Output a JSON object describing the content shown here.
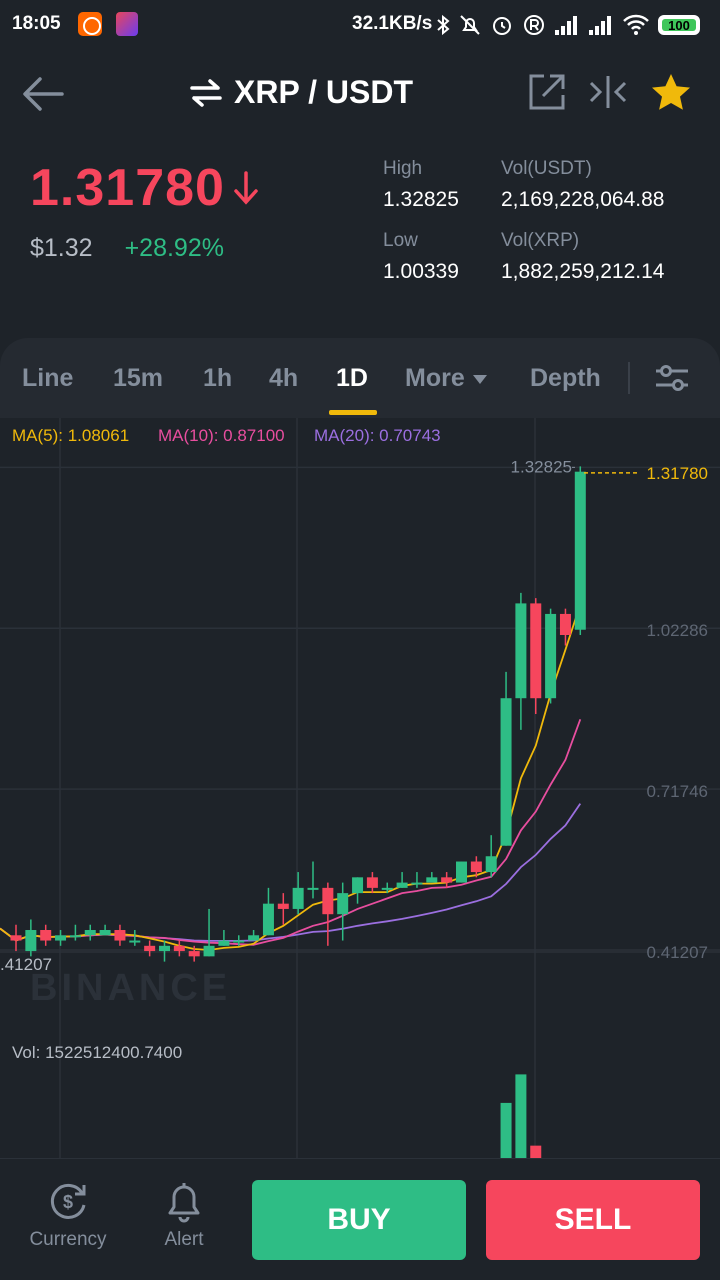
{
  "status": {
    "time": "18:05",
    "speed": "32.1KB/s",
    "battery": "100"
  },
  "header": {
    "pair": "XRP / USDT"
  },
  "ticker": {
    "price": "1.31780",
    "usd": "$1.32",
    "change": "+28.92%",
    "high_label": "High",
    "high": "1.32825",
    "low_label": "Low",
    "low": "1.00339",
    "vol_usdt_label": "Vol(USDT)",
    "vol_usdt": "2,169,228,064.88",
    "vol_xrp_label": "Vol(XRP)",
    "vol_xrp": "1,882,259,212.14"
  },
  "tabs": {
    "line": "Line",
    "m15": "15m",
    "h1": "1h",
    "h4": "4h",
    "d1": "1D",
    "more": "More",
    "depth": "Depth",
    "active": "1D"
  },
  "ma": {
    "ma5": "MA(5): 1.08061",
    "ma10": "MA(10): 0.87100",
    "ma20": "MA(20): 0.70743",
    "ma5_color": "#f0b90b",
    "ma10_color": "#e84e9f",
    "ma20_color": "#9b6fe0"
  },
  "colors": {
    "up": "#2ebd85",
    "down": "#f6465d",
    "accent": "#f0b90b"
  },
  "chart_data": {
    "type": "candlestick",
    "y_axis_labels": [
      "1.32825",
      "1.02286",
      "0.71746",
      "0.41207"
    ],
    "high_label": "1.32825",
    "last_price_label": "1.31780",
    "low_label": ".41207",
    "watermark": "BINANCE",
    "volume_label": "Vol: 1522512400.7400",
    "ylim": [
      0.245,
      1.346
    ],
    "candles": [
      {
        "o": 0.44,
        "c": 0.43,
        "h": 0.46,
        "l": 0.41
      },
      {
        "o": 0.41,
        "c": 0.45,
        "h": 0.47,
        "l": 0.4
      },
      {
        "o": 0.45,
        "c": 0.43,
        "h": 0.46,
        "l": 0.42
      },
      {
        "o": 0.43,
        "c": 0.44,
        "h": 0.45,
        "l": 0.42
      },
      {
        "o": 0.44,
        "c": 0.44,
        "h": 0.46,
        "l": 0.43
      },
      {
        "o": 0.44,
        "c": 0.45,
        "h": 0.46,
        "l": 0.43
      },
      {
        "o": 0.44,
        "c": 0.45,
        "h": 0.46,
        "l": 0.44
      },
      {
        "o": 0.45,
        "c": 0.43,
        "h": 0.46,
        "l": 0.42
      },
      {
        "o": 0.43,
        "c": 0.43,
        "h": 0.45,
        "l": 0.42
      },
      {
        "o": 0.42,
        "c": 0.41,
        "h": 0.43,
        "l": 0.4
      },
      {
        "o": 0.41,
        "c": 0.42,
        "h": 0.43,
        "l": 0.39
      },
      {
        "o": 0.42,
        "c": 0.41,
        "h": 0.43,
        "l": 0.4
      },
      {
        "o": 0.41,
        "c": 0.4,
        "h": 0.42,
        "l": 0.39
      },
      {
        "o": 0.4,
        "c": 0.42,
        "h": 0.49,
        "l": 0.4
      },
      {
        "o": 0.42,
        "c": 0.43,
        "h": 0.45,
        "l": 0.42
      },
      {
        "o": 0.43,
        "c": 0.43,
        "h": 0.44,
        "l": 0.42
      },
      {
        "o": 0.43,
        "c": 0.44,
        "h": 0.45,
        "l": 0.43
      },
      {
        "o": 0.44,
        "c": 0.5,
        "h": 0.53,
        "l": 0.44
      },
      {
        "o": 0.5,
        "c": 0.49,
        "h": 0.52,
        "l": 0.46
      },
      {
        "o": 0.49,
        "c": 0.53,
        "h": 0.56,
        "l": 0.48
      },
      {
        "o": 0.53,
        "c": 0.53,
        "h": 0.58,
        "l": 0.51
      },
      {
        "o": 0.53,
        "c": 0.48,
        "h": 0.54,
        "l": 0.42
      },
      {
        "o": 0.48,
        "c": 0.52,
        "h": 0.54,
        "l": 0.43
      },
      {
        "o": 0.52,
        "c": 0.55,
        "h": 0.55,
        "l": 0.5
      },
      {
        "o": 0.55,
        "c": 0.53,
        "h": 0.56,
        "l": 0.52
      },
      {
        "o": 0.53,
        "c": 0.53,
        "h": 0.54,
        "l": 0.52
      },
      {
        "o": 0.53,
        "c": 0.54,
        "h": 0.56,
        "l": 0.53
      },
      {
        "o": 0.54,
        "c": 0.54,
        "h": 0.56,
        "l": 0.53
      },
      {
        "o": 0.54,
        "c": 0.55,
        "h": 0.56,
        "l": 0.54
      },
      {
        "o": 0.55,
        "c": 0.54,
        "h": 0.56,
        "l": 0.53
      },
      {
        "o": 0.54,
        "c": 0.58,
        "h": 0.58,
        "l": 0.54
      },
      {
        "o": 0.58,
        "c": 0.56,
        "h": 0.59,
        "l": 0.55
      },
      {
        "o": 0.56,
        "c": 0.59,
        "h": 0.63,
        "l": 0.55
      },
      {
        "o": 0.61,
        "c": 0.89,
        "h": 0.94,
        "l": 0.61
      },
      {
        "o": 0.89,
        "c": 1.07,
        "h": 1.09,
        "l": 0.83
      },
      {
        "o": 1.07,
        "c": 0.89,
        "h": 1.08,
        "l": 0.86
      },
      {
        "o": 0.89,
        "c": 1.05,
        "h": 1.06,
        "l": 0.88
      },
      {
        "o": 1.05,
        "c": 1.01,
        "h": 1.06,
        "l": 0.99
      },
      {
        "o": 1.02,
        "c": 1.32,
        "h": 1.33,
        "l": 1.01
      }
    ],
    "volume_bars": [
      {
        "dir": "up",
        "v": 0.58
      },
      {
        "dir": "up",
        "v": 0.88
      },
      {
        "dir": "down",
        "v": 0.13
      }
    ]
  },
  "bottom": {
    "currency": "Currency",
    "alert": "Alert",
    "buy": "BUY",
    "sell": "SELL"
  }
}
